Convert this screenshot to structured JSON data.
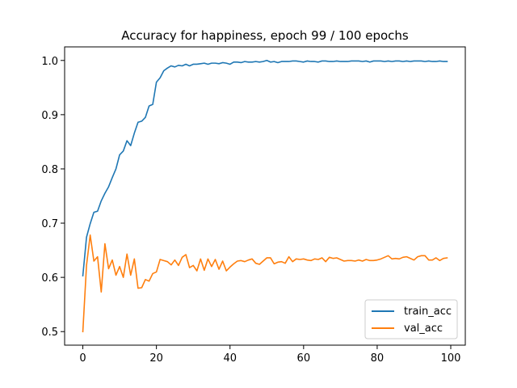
{
  "chart_data": {
    "type": "line",
    "title": "Accuracy for happiness, epoch 99 / 100 epochs",
    "xlabel": "",
    "ylabel": "",
    "xlim": [
      -4.95,
      103.95
    ],
    "ylim": [
      0.475,
      1.025
    ],
    "xticks": [
      0,
      20,
      40,
      60,
      80,
      100
    ],
    "yticks": [
      0.5,
      0.6,
      0.7,
      0.8,
      0.9,
      1.0
    ],
    "xtick_labels": [
      "0",
      "20",
      "40",
      "60",
      "80",
      "100"
    ],
    "ytick_labels": [
      "0.5",
      "0.6",
      "0.7",
      "0.8",
      "0.9",
      "1.0"
    ],
    "grid": false,
    "legend_position": "bottom-right",
    "series": [
      {
        "name": "train_acc",
        "color": "#1f77b4",
        "values": [
          0.603,
          0.674,
          0.699,
          0.72,
          0.722,
          0.741,
          0.755,
          0.767,
          0.784,
          0.8,
          0.826,
          0.833,
          0.852,
          0.843,
          0.866,
          0.886,
          0.888,
          0.895,
          0.916,
          0.919,
          0.96,
          0.968,
          0.981,
          0.986,
          0.99,
          0.988,
          0.991,
          0.99,
          0.993,
          0.99,
          0.993,
          0.993,
          0.994,
          0.995,
          0.993,
          0.995,
          0.995,
          0.994,
          0.996,
          0.995,
          0.993,
          0.997,
          0.997,
          0.996,
          0.998,
          0.997,
          0.997,
          0.998,
          0.997,
          0.998,
          1.0,
          0.997,
          0.998,
          0.996,
          0.998,
          0.998,
          0.998,
          0.999,
          0.999,
          0.998,
          0.997,
          0.999,
          0.998,
          0.998,
          0.997,
          0.999,
          0.999,
          0.998,
          0.998,
          0.999,
          0.998,
          0.998,
          0.998,
          0.999,
          0.999,
          0.999,
          0.998,
          0.999,
          0.997,
          0.999,
          0.999,
          0.999,
          0.998,
          0.999,
          0.998,
          0.999,
          0.999,
          0.998,
          0.999,
          0.998,
          0.999,
          0.999,
          0.999,
          0.998,
          0.999,
          0.998,
          0.998,
          0.999,
          0.998,
          0.998
        ]
      },
      {
        "name": "val_acc",
        "color": "#ff7f0e",
        "values": [
          0.5,
          0.622,
          0.678,
          0.63,
          0.638,
          0.573,
          0.662,
          0.616,
          0.632,
          0.604,
          0.62,
          0.6,
          0.643,
          0.604,
          0.634,
          0.58,
          0.581,
          0.596,
          0.593,
          0.607,
          0.61,
          0.633,
          0.631,
          0.629,
          0.623,
          0.632,
          0.622,
          0.637,
          0.642,
          0.618,
          0.622,
          0.612,
          0.634,
          0.613,
          0.634,
          0.62,
          0.633,
          0.615,
          0.63,
          0.612,
          0.619,
          0.625,
          0.63,
          0.631,
          0.629,
          0.632,
          0.634,
          0.626,
          0.624,
          0.63,
          0.636,
          0.636,
          0.625,
          0.628,
          0.629,
          0.626,
          0.638,
          0.629,
          0.634,
          0.633,
          0.634,
          0.632,
          0.631,
          0.634,
          0.633,
          0.636,
          0.629,
          0.637,
          0.635,
          0.636,
          0.633,
          0.63,
          0.631,
          0.631,
          0.63,
          0.632,
          0.63,
          0.633,
          0.631,
          0.631,
          0.632,
          0.634,
          0.637,
          0.64,
          0.634,
          0.635,
          0.634,
          0.637,
          0.638,
          0.635,
          0.632,
          0.638,
          0.64,
          0.64,
          0.632,
          0.632,
          0.636,
          0.631,
          0.635,
          0.636
        ]
      }
    ]
  }
}
